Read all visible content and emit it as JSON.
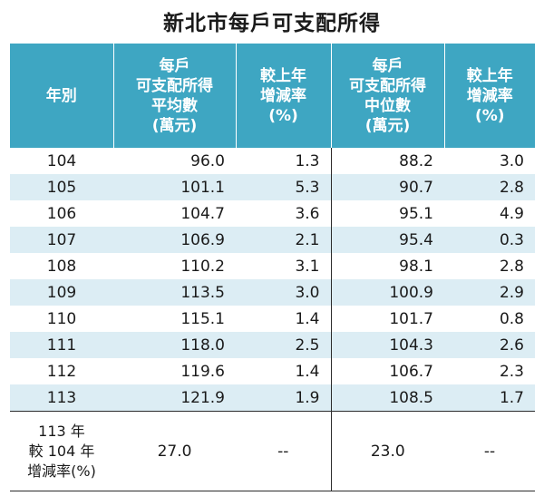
{
  "title": "新北市每戶可支配所得",
  "headers": {
    "year": "年別",
    "avg": [
      "每戶",
      "可支配所得",
      "平均數",
      "(萬元)"
    ],
    "avg_rate": [
      "較上年",
      "增減率",
      "(%)"
    ],
    "median": [
      "每戶",
      "可支配所得",
      "中位數",
      "(萬元)"
    ],
    "median_rate": [
      "較上年",
      "增減率",
      "(%)"
    ]
  },
  "rows": [
    {
      "year": "104",
      "avg": "96.0",
      "avg_rate": "1.3",
      "median": "88.2",
      "median_rate": "3.0"
    },
    {
      "year": "105",
      "avg": "101.1",
      "avg_rate": "5.3",
      "median": "90.7",
      "median_rate": "2.8"
    },
    {
      "year": "106",
      "avg": "104.7",
      "avg_rate": "3.6",
      "median": "95.1",
      "median_rate": "4.9"
    },
    {
      "year": "107",
      "avg": "106.9",
      "avg_rate": "2.1",
      "median": "95.4",
      "median_rate": "0.3"
    },
    {
      "year": "108",
      "avg": "110.2",
      "avg_rate": "3.1",
      "median": "98.1",
      "median_rate": "2.8"
    },
    {
      "year": "109",
      "avg": "113.5",
      "avg_rate": "3.0",
      "median": "100.9",
      "median_rate": "2.9"
    },
    {
      "year": "110",
      "avg": "115.1",
      "avg_rate": "1.4",
      "median": "101.7",
      "median_rate": "0.8"
    },
    {
      "year": "111",
      "avg": "118.0",
      "avg_rate": "2.5",
      "median": "104.3",
      "median_rate": "2.6"
    },
    {
      "year": "112",
      "avg": "119.6",
      "avg_rate": "1.4",
      "median": "106.7",
      "median_rate": "2.3"
    },
    {
      "year": "113",
      "avg": "121.9",
      "avg_rate": "1.9",
      "median": "108.5",
      "median_rate": "1.7"
    }
  ],
  "summary": {
    "label": [
      "113 年",
      "較 104 年",
      "增減率(%)"
    ],
    "avg": "27.0",
    "avg_rate": "--",
    "median": "23.0",
    "median_rate": "--"
  },
  "colors": {
    "header_bg": "#3ea6c2",
    "row_alt_bg": "#dcedf4"
  }
}
